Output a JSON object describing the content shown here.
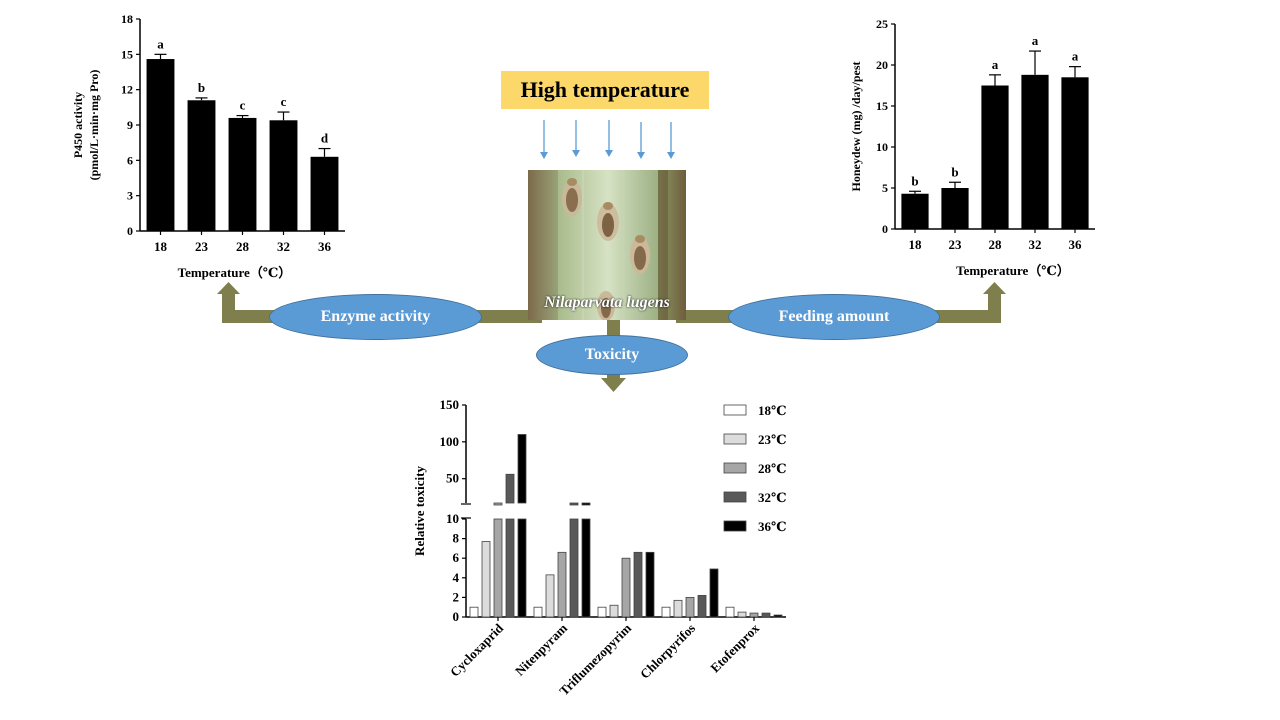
{
  "center": {
    "high_temperature_label": "High temperature",
    "species_name": "Nilaparvata lugens",
    "enzyme_activity_label": "Enzyme activity",
    "feeding_amount_label": "Feeding amount",
    "toxicity_label": "Toxicity"
  },
  "colors": {
    "bar_black": "#000000",
    "arrow_olive": "#7f7f4d",
    "ellipse_blue": "#5b9bd5",
    "label_yellow": "#fcd86a",
    "down_arrow_blue": "#5b9bd5"
  },
  "chart_data": [
    {
      "id": "p450",
      "type": "bar",
      "categories": [
        "18",
        "23",
        "28",
        "32",
        "36"
      ],
      "values": [
        14.6,
        11.1,
        9.6,
        9.4,
        6.3
      ],
      "errors": [
        0.4,
        0.2,
        0.2,
        0.7,
        0.7
      ],
      "letters": [
        "a",
        "b",
        "c",
        "c",
        "d"
      ],
      "ylabel": "P450 activity",
      "ylabel_units": "(pmol/L·min·mg Pro)",
      "xlabel": "Temperature（℃）",
      "ylim": [
        0,
        18
      ],
      "yticks": [
        "0",
        "3",
        "6",
        "9",
        "12",
        "15",
        "18"
      ]
    },
    {
      "id": "honeydew",
      "type": "bar",
      "categories": [
        "18",
        "23",
        "28",
        "32",
        "36"
      ],
      "values": [
        4.3,
        5.0,
        17.5,
        18.8,
        18.5
      ],
      "errors": [
        0.3,
        0.7,
        1.3,
        2.9,
        1.3
      ],
      "letters": [
        "b",
        "b",
        "a",
        "a",
        "a"
      ],
      "ylabel": "Honeydew (mg) /day/pest",
      "xlabel": "Temperature（℃）",
      "ylim": [
        0,
        25
      ],
      "yticks": [
        "0",
        "5",
        "10",
        "15",
        "20",
        "25"
      ]
    },
    {
      "id": "toxicity",
      "type": "bar",
      "categories": [
        "Cycloxaprid",
        "Nitenpyram",
        "Triflumezopyrim",
        "Chlorpyrifos",
        "Etofenprox"
      ],
      "series": [
        {
          "name": "18℃",
          "color": "#ffffff",
          "values": [
            1,
            1,
            1,
            1,
            1
          ]
        },
        {
          "name": "23℃",
          "color": "#dcdcdc",
          "values": [
            7.7,
            4.3,
            1.2,
            1.7,
            0.5
          ]
        },
        {
          "name": "28℃",
          "color": "#a6a6a6",
          "values": [
            17,
            6.6,
            6.0,
            2.0,
            0.4
          ]
        },
        {
          "name": "32℃",
          "color": "#595959",
          "values": [
            56,
            12,
            6.6,
            2.2,
            0.4
          ]
        },
        {
          "name": "36℃",
          "color": "#000000",
          "values": [
            110,
            16,
            6.6,
            4.9,
            0.2
          ]
        }
      ],
      "ylabel": "Relative toxicity",
      "ylim": [
        0,
        150
      ],
      "axis_break": [
        10,
        15
      ],
      "yticks_lower": [
        "0",
        "2",
        "4",
        "6",
        "8",
        "10"
      ],
      "yticks_upper": [
        "50",
        "100",
        "150"
      ],
      "legend_position": "right"
    }
  ]
}
